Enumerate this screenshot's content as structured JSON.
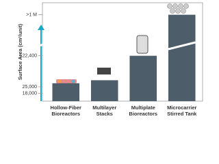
{
  "chart_data": {
    "type": "bar",
    "y_label": "Surface Area (cm²/unit)",
    "categories": [
      "Hollow-Fiber Bioreactors",
      "Multilayer Stacks",
      "Multiplate Bioreactors",
      "Microcarrier Stirred Tank"
    ],
    "values": [
      30000,
      35000,
      122400,
      1000000
    ],
    "color": "#4d5d69",
    "log_scale": true,
    "ylim": [
      12000,
      1500000
    ],
    "yticks": [
      {
        "value": 18000,
        "label": "18,000"
      },
      {
        "value": 25000,
        "label": "25,000"
      },
      {
        "value": 122400,
        "label": "122,400"
      },
      {
        "value": 1000000,
        "label": ">1 M"
      }
    ]
  }
}
